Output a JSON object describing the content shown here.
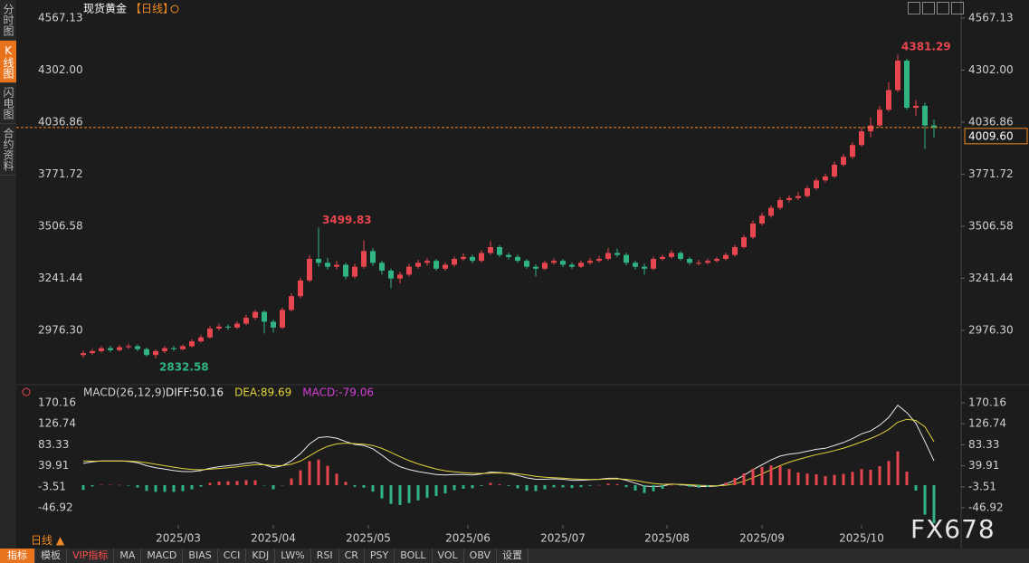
{
  "chart_data": [
    {
      "type": "candlestick",
      "title": "现货黄金",
      "subtitle": "【日线】",
      "up_color": "#e8464e",
      "down_color": "#2fb482",
      "open": [
        2850,
        2860,
        2870,
        2885,
        2875,
        2890,
        2895,
        2880,
        2850,
        2870,
        2885,
        2880,
        2895,
        2920,
        2940,
        2985,
        2995,
        2990,
        3010,
        3040,
        3070,
        3020,
        2990,
        3080,
        3150,
        3230,
        3340,
        3320,
        3300,
        3310,
        3250,
        3300,
        3380,
        3320,
        3280,
        3240,
        3260,
        3300,
        3320,
        3330,
        3290,
        3310,
        3340,
        3350,
        3330,
        3370,
        3400,
        3360,
        3350,
        3330,
        3300,
        3290,
        3320,
        3330,
        3310,
        3300,
        3320,
        3330,
        3340,
        3370,
        3360,
        3320,
        3300,
        3290,
        3340,
        3350,
        3370,
        3340,
        3320,
        3320,
        3330,
        3340,
        3360,
        3400,
        3450,
        3520,
        3560,
        3600,
        3640,
        3650,
        3660,
        3700,
        3740,
        3760,
        3820,
        3860,
        3920,
        3990,
        4020,
        4100,
        4200,
        4350,
        4110,
        4120,
        4020
      ],
      "high": [
        2872,
        2880,
        2895,
        2898,
        2902,
        2908,
        2904,
        2888,
        2878,
        2895,
        2896,
        2904,
        2930,
        2952,
        2998,
        3010,
        3006,
        3022,
        3055,
        3080,
        3078,
        3030,
        3092,
        3165,
        3245,
        3360,
        3499.83,
        3345,
        3330,
        3320,
        3315,
        3435,
        3395,
        3330,
        3290,
        3275,
        3315,
        3335,
        3345,
        3340,
        3322,
        3352,
        3368,
        3362,
        3385,
        3430,
        3410,
        3372,
        3362,
        3340,
        3312,
        3330,
        3342,
        3340,
        3322,
        3332,
        3345,
        3355,
        3395,
        3392,
        3372,
        3330,
        3315,
        3352,
        3362,
        3385,
        3380,
        3350,
        3335,
        3342,
        3350,
        3372,
        3412,
        3462,
        3535,
        3575,
        3612,
        3655,
        3665,
        3680,
        3712,
        3752,
        3775,
        3835,
        3875,
        3935,
        4010,
        4060,
        4120,
        4240,
        4381.29,
        4360,
        4150,
        4135,
        4050
      ],
      "low": [
        2838,
        2852,
        2862,
        2866,
        2868,
        2882,
        2870,
        2842,
        2832.58,
        2860,
        2872,
        2874,
        2888,
        2912,
        2934,
        2975,
        2978,
        2982,
        3002,
        3030,
        2960,
        2965,
        2984,
        3072,
        3140,
        3222,
        3300,
        3285,
        3285,
        3235,
        3240,
        3290,
        3305,
        3260,
        3190,
        3215,
        3250,
        3290,
        3305,
        3280,
        3280,
        3300,
        3330,
        3318,
        3322,
        3360,
        3350,
        3338,
        3320,
        3290,
        3250,
        3282,
        3310,
        3298,
        3288,
        3292,
        3310,
        3322,
        3332,
        3348,
        3308,
        3285,
        3260,
        3282,
        3330,
        3342,
        3330,
        3310,
        3308,
        3312,
        3322,
        3332,
        3352,
        3392,
        3440,
        3510,
        3550,
        3590,
        3628,
        3640,
        3652,
        3690,
        3730,
        3752,
        3810,
        3850,
        3912,
        3960,
        4010,
        4090,
        4190,
        4100,
        4070,
        3900,
        3960
      ],
      "close": [
        2860,
        2870,
        2885,
        2875,
        2890,
        2895,
        2880,
        2850,
        2870,
        2885,
        2880,
        2895,
        2920,
        2940,
        2985,
        2995,
        2990,
        3010,
        3040,
        3070,
        3020,
        2990,
        3080,
        3150,
        3230,
        3340,
        3320,
        3300,
        3310,
        3250,
        3300,
        3380,
        3320,
        3280,
        3240,
        3260,
        3300,
        3320,
        3330,
        3290,
        3310,
        3340,
        3350,
        3330,
        3370,
        3400,
        3360,
        3350,
        3330,
        3300,
        3290,
        3320,
        3330,
        3310,
        3300,
        3320,
        3330,
        3340,
        3370,
        3360,
        3320,
        3300,
        3290,
        3340,
        3350,
        3370,
        3340,
        3320,
        3320,
        3330,
        3340,
        3360,
        3400,
        3450,
        3520,
        3560,
        3600,
        3640,
        3650,
        3660,
        3700,
        3740,
        3760,
        3820,
        3860,
        3920,
        3990,
        4020,
        4100,
        4200,
        4350,
        4110,
        4120,
        4020,
        4009.6
      ],
      "current_price": {
        "value": 4009.6,
        "label": "4009.60"
      },
      "current_color": "#f08a24",
      "xlim": [
        -0.5,
        95
      ],
      "ylim": [
        2722,
        4613
      ],
      "yticks": [
        4567.13,
        {
          "value": 4302,
          "label": "4302.00"
        },
        4036.86,
        3771.72,
        3506.58,
        3241.44,
        {
          "value": 2976.3,
          "label": "2976.30"
        }
      ]
    },
    {
      "type": "macd",
      "title": "MACD(26,12,9)",
      "series": [
        {
          "name": "DIFF:50.16",
          "color": "#e8e8e8",
          "values": [
            45,
            48,
            50,
            50,
            50,
            49,
            46,
            40,
            36,
            33,
            30,
            28,
            28,
            30,
            35,
            38,
            40,
            42,
            45,
            47,
            42,
            36,
            40,
            50,
            65,
            85,
            98,
            100,
            97,
            90,
            84,
            82,
            75,
            62,
            48,
            38,
            32,
            28,
            25,
            22,
            21,
            22,
            22,
            21,
            23,
            27,
            26,
            24,
            20,
            15,
            12,
            12,
            13,
            12,
            10,
            10,
            11,
            12,
            14,
            14,
            10,
            4,
            -2,
            -3,
            -2,
            2,
            1,
            -1,
            -3,
            -3,
            -2,
            2,
            10,
            20,
            32,
            42,
            52,
            60,
            64,
            66,
            70,
            74,
            76,
            82,
            88,
            96,
            106,
            112,
            124,
            140,
            165,
            150,
            128,
            90,
            50.16
          ]
        },
        {
          "name": "DEA:89.69",
          "color": "#e3d23c",
          "values": [
            50,
            49.4,
            49.6,
            49.7,
            49.8,
            49.6,
            48.5,
            46,
            43,
            40,
            37,
            34.3,
            32.4,
            31.7,
            32.7,
            34.3,
            36,
            37.8,
            40,
            42.1,
            42.1,
            40.3,
            40.2,
            43.1,
            49.7,
            60.3,
            71.6,
            80.1,
            85.2,
            86.6,
            85.8,
            84.7,
            81.8,
            75.8,
            67.5,
            58.6,
            50.6,
            43.8,
            38.2,
            33.3,
            29.6,
            27.3,
            25.7,
            24.3,
            23.9,
            24.8,
            25.2,
            24.8,
            23.4,
            20.9,
            18.2,
            16.3,
            15.3,
            14.3,
            13,
            12.1,
            11.8,
            11.9,
            12.5,
            13,
            12.1,
            9.7,
            6.2,
            3.4,
            1.8,
            1.9,
            1.6,
            0.8,
            -0.3,
            -1.1,
            -1.4,
            -0.4,
            2.7,
            7.9,
            15.1,
            23.2,
            31.8,
            40.3,
            47.4,
            53,
            58.1,
            62.9,
            66.8,
            71.4,
            76.4,
            82.3,
            89.4,
            96.2,
            104.5,
            115.1,
            130.1,
            136.1,
            133.7,
            120.6,
            89.69
          ]
        },
        {
          "name": "MACD:-79.06",
          "color": "#d23ed6",
          "up_color": "#e8464e",
          "down_color": "#2fb482",
          "values": [
            -10,
            -2.8,
            0.8,
            0.6,
            0.4,
            -1.2,
            -5,
            -12,
            -14,
            -14,
            -14,
            -12.6,
            -8.8,
            -3.4,
            4.6,
            7.4,
            8,
            8.4,
            10,
            9.8,
            -0.2,
            -8.6,
            -0.4,
            13.8,
            30.6,
            49.4,
            52.8,
            39.8,
            23.6,
            6.8,
            -3.6,
            -5.4,
            -13.6,
            -27.6,
            -39,
            -41.2,
            -37.2,
            -31.6,
            -26.4,
            -22.6,
            -17.2,
            -10.6,
            -7.4,
            -6.6,
            -1.8,
            4.4,
            1.6,
            -1.6,
            -6.8,
            -11.8,
            -12.4,
            -8.6,
            -4.6,
            -4.6,
            -6,
            -4.2,
            -1.6,
            0.2,
            3,
            2,
            -4.2,
            -11.4,
            -16.4,
            -12.8,
            -7.6,
            0.2,
            -1.2,
            -3.6,
            -5.4,
            -3.8,
            -1.2,
            4.8,
            14.6,
            24.2,
            33.8,
            37.6,
            40.4,
            39.4,
            33.2,
            26,
            23.8,
            22.2,
            18.4,
            21.2,
            23.2,
            27.4,
            33.2,
            31.6,
            39,
            49.8,
            69.8,
            27.8,
            -11.4,
            -61.2,
            -79.06
          ]
        }
      ],
      "xlim": [
        -0.5,
        95
      ],
      "ylim": [
        -82.5,
        179.5
      ],
      "yticks": [
        170.16,
        126.74,
        83.33,
        39.91,
        -3.51,
        -46.92
      ],
      "xticks": [
        {
          "value": 10.5,
          "label": "2025/03"
        },
        {
          "value": 21,
          "label": "2025/04"
        },
        {
          "value": 31.5,
          "label": "2025/05"
        },
        {
          "value": 42.5,
          "label": "2025/06"
        },
        {
          "value": 53,
          "label": "2025/07"
        },
        {
          "value": 64.5,
          "label": "2025/08"
        },
        {
          "value": 75,
          "label": "2025/09"
        },
        {
          "value": 86,
          "label": "2025/10"
        }
      ]
    }
  ],
  "ui": {
    "tabs": [
      "分时图",
      "K线图",
      "闪电图",
      "合约资料"
    ],
    "period": "日线 ▲",
    "watermark": "FX678",
    "toolbar": [
      "指标",
      "模板",
      "VIP指标",
      "MA",
      "MACD",
      "BIAS",
      "CCI",
      "KDJ",
      "LW%",
      "RSI",
      "CR",
      "PSY",
      "BOLL",
      "VOL",
      "OBV",
      "设置"
    ]
  }
}
